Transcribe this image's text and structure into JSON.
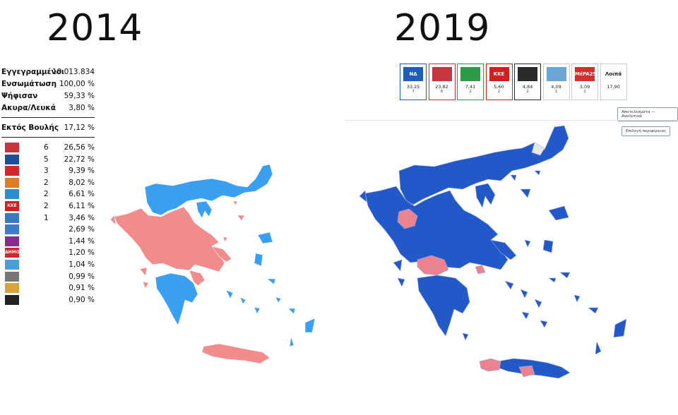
{
  "titles": {
    "left": "2014",
    "right": "2019"
  },
  "stats_2014": [
    {
      "label": "Εγγεγραμμένοι",
      "value": "10.013.834"
    },
    {
      "label": "Ενσωμάτωση",
      "value": "100,00 %"
    },
    {
      "label": "Ψήφισαν",
      "value": "59,33 %"
    },
    {
      "label": "Ακυρα/Λευκά",
      "value": "3,80 %"
    }
  ],
  "outside_parliament": {
    "label": "Εκτός Βουλής",
    "value": "17,12 %"
  },
  "parties_2014": [
    {
      "seats": "6",
      "pct": "26,56 %",
      "color": "#c7353d",
      "logo": ""
    },
    {
      "seats": "5",
      "pct": "22,72 %",
      "color": "#1e4e9c",
      "logo": ""
    },
    {
      "seats": "3",
      "pct": "9,39 %",
      "color": "#d2262c",
      "logo": ""
    },
    {
      "seats": "2",
      "pct": "8,02 %",
      "color": "#e07b2a",
      "logo": ""
    },
    {
      "seats": "2",
      "pct": "6,61 %",
      "color": "#2b8fd0",
      "logo": ""
    },
    {
      "seats": "2",
      "pct": "6,11 %",
      "color": "#d21e1e",
      "logo": "KKE"
    },
    {
      "seats": "1",
      "pct": "3,46 %",
      "color": "#3a7bbd",
      "logo": ""
    },
    {
      "seats": "",
      "pct": "2,69 %",
      "color": "#3e7ec8",
      "logo": ""
    },
    {
      "seats": "",
      "pct": "1,44 %",
      "color": "#8a2a8f",
      "logo": ""
    },
    {
      "seats": "",
      "pct": "1,20 %",
      "color": "#d6262b",
      "logo": "ΔΗΜΟΚΡΑΤΙΚΗ ΑΡΙΣΤΕΡΑ"
    },
    {
      "seats": "",
      "pct": "1,04 %",
      "color": "#4a9fd8",
      "logo": ""
    },
    {
      "seats": "",
      "pct": "0,99 %",
      "color": "#777777",
      "logo": ""
    },
    {
      "seats": "",
      "pct": "0,91 %",
      "color": "#d9a13a",
      "logo": ""
    },
    {
      "seats": "",
      "pct": "0,90 %",
      "color": "#222222",
      "logo": ""
    }
  ],
  "parties_2019": [
    {
      "logo": "ΝΔ",
      "pct": "33,25",
      "seats": "7",
      "color": "#1f5eb8",
      "border": "#1f5eb8"
    },
    {
      "logo": "",
      "pct": "23,82",
      "seats": "6",
      "color": "#c7353d",
      "border": "#c7353d"
    },
    {
      "logo": "",
      "pct": "7,41",
      "seats": "2",
      "color": "#2d9a46",
      "border": "#2d9a46"
    },
    {
      "logo": "KKE",
      "pct": "5,60",
      "seats": "2",
      "color": "#d21e1e",
      "border": "#d21e1e"
    },
    {
      "logo": "",
      "pct": "4,84",
      "seats": "2",
      "color": "#2b2b2b",
      "border": "#2b2b2b"
    },
    {
      "logo": "",
      "pct": "4,09",
      "seats": "1",
      "color": "#6aa5d8",
      "border": "#cccccc"
    },
    {
      "logo": "MέPA25",
      "pct": "3,09",
      "seats": "1",
      "color": "#d62e2e",
      "border": "#cccccc"
    },
    {
      "logo": "Λοιπά",
      "pct": "17,90",
      "seats": "",
      "color": "#222222",
      "border": "#cccccc"
    }
  ],
  "buttons": {
    "detailed": "Αποτελέσματα — Αναλυτικά",
    "regions": "Επιλογή περιφέρειας"
  },
  "map_colors": {
    "light_blue": "#3a9ff0",
    "pink": "#f28c8c",
    "dark_blue": "#2358c8",
    "rose": "#e8838f",
    "gray": "#e6e8ec"
  }
}
